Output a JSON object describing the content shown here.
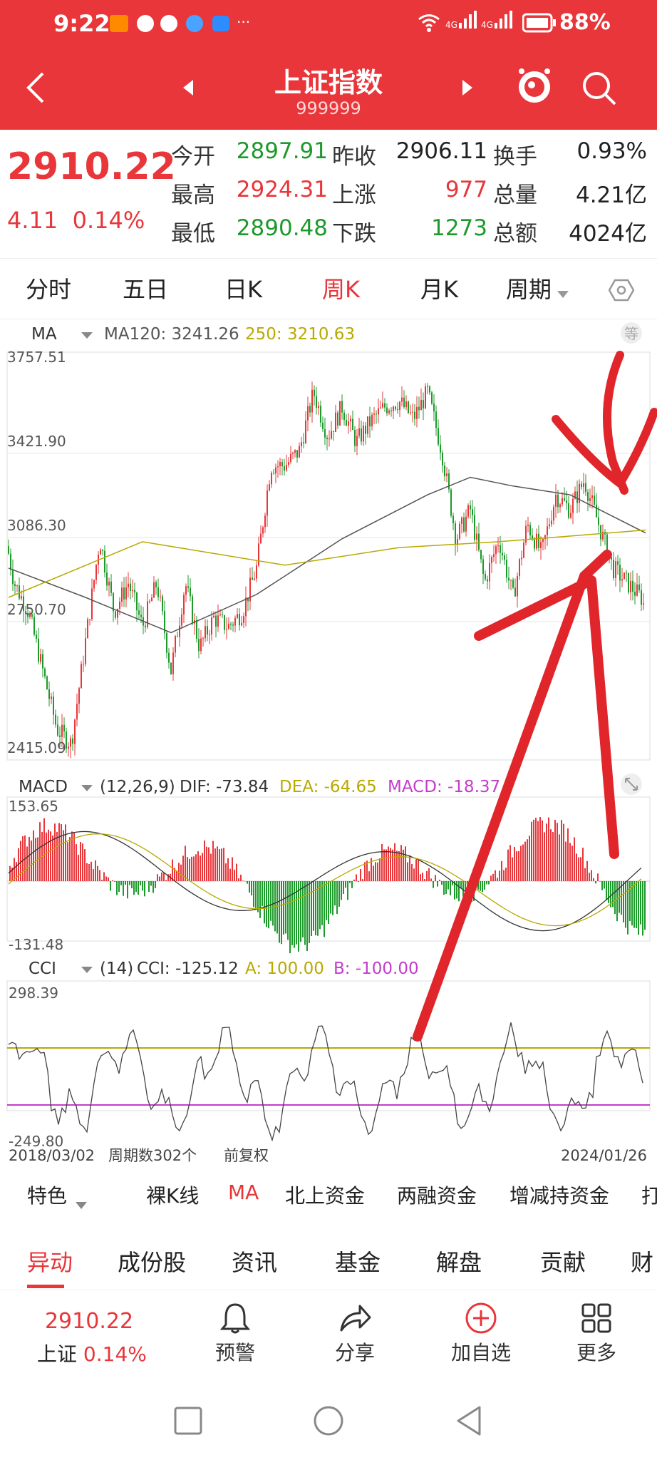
{
  "status": {
    "time": "9:22",
    "battery": "88%",
    "net1": "4G",
    "net2": "4G"
  },
  "header": {
    "title": "上证指数",
    "code": "999999"
  },
  "quote": {
    "price": "2910.22",
    "change": "4.11",
    "change_pct": "0.14%",
    "stats": [
      {
        "label": "今开",
        "value": "2897.91",
        "color": "#1e9a2c",
        "label2": "昨收",
        "value2": "2906.11",
        "color2": "#222222",
        "label3": "换手",
        "value3": "0.93%"
      },
      {
        "label": "最高",
        "value": "2924.31",
        "color": "#e8363a",
        "label2": "上涨",
        "value2": "977",
        "color2": "#e8363a",
        "label3": "总量",
        "value3": "4.21亿"
      },
      {
        "label": "最低",
        "value": "2890.48",
        "color": "#1e9a2c",
        "label2": "下跌",
        "value2": "1273",
        "color2": "#1e9a2c",
        "label3": "总额",
        "value3": "4024亿"
      }
    ]
  },
  "tabs": [
    "分时",
    "五日",
    "日K",
    "周K",
    "月K",
    "周期"
  ],
  "active_tab": "周K",
  "ma_bar": {
    "name": "MA",
    "ma120": "MA120: 3241.26",
    "ma250": "250: 3210.63",
    "eq": "等"
  },
  "price_axis": [
    "3757.51",
    "3421.90",
    "3086.30",
    "2750.70",
    "2415.09"
  ],
  "macd_bar": {
    "name": "MACD",
    "params": "(12,26,9)",
    "dif": "DIF: -73.84",
    "dea": "DEA: -64.65",
    "macd": "MACD: -18.37"
  },
  "macd_axis": [
    "153.65",
    "-131.48"
  ],
  "cci_bar": {
    "name": "CCI",
    "params": "(14)",
    "cci": "CCI: -125.12",
    "a": "A: 100.00",
    "b": "B: -100.00"
  },
  "cci_axis": [
    "298.39",
    "-249.80"
  ],
  "date_bar": {
    "start": "2018/03/02",
    "count": "周期数302个",
    "adj": "前复权",
    "end": "2024/01/26"
  },
  "feature_row": [
    "特色",
    "裸K线",
    "MA",
    "北上资金",
    "两融资金",
    "增减持资金",
    "打"
  ],
  "sections": [
    "异动",
    "成份股",
    "资讯",
    "基金",
    "解盘",
    "贡献",
    "财"
  ],
  "dock": {
    "price": "2910.22",
    "name": "上证",
    "pct": "0.14%",
    "items": [
      "预警",
      "分享",
      "加自选",
      "更多"
    ]
  },
  "colors": {
    "accent": "#e8363a",
    "up": "#e8363a",
    "down": "#1e9a2c",
    "ma120": "#555555",
    "ma250": "#b9a800",
    "annotation": "#e0252b"
  }
}
